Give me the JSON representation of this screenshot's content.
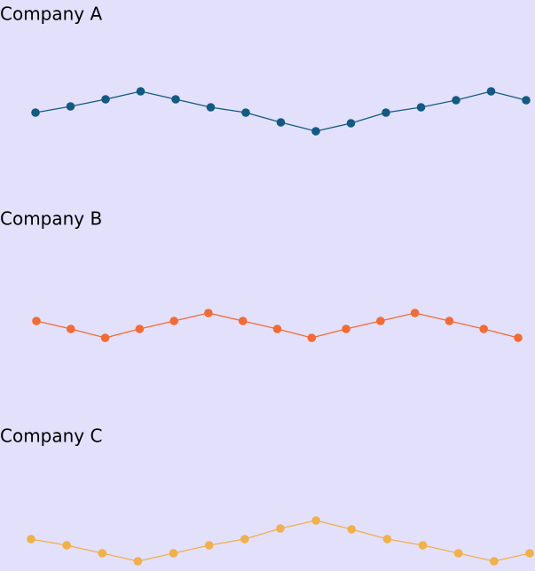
{
  "chart_data": [
    {
      "type": "line",
      "title": "Company A",
      "color": "#135a82",
      "ylim": [
        0,
        50
      ],
      "values": [
        23,
        30,
        38,
        47,
        38,
        29,
        23,
        12,
        2,
        11,
        23,
        29,
        37,
        47,
        37
      ]
    },
    {
      "type": "line",
      "title": "Company B",
      "color": "#f26b35",
      "ylim": [
        0,
        50
      ],
      "values": [
        23,
        14,
        4,
        14,
        23,
        32,
        23,
        14,
        4,
        14,
        23,
        32,
        23,
        14,
        4
      ]
    },
    {
      "type": "line",
      "title": "Company C",
      "color": "#f0b04a",
      "ylim": [
        0,
        50
      ],
      "values": [
        28,
        21,
        12,
        3,
        12,
        21,
        28,
        40,
        49,
        39,
        28,
        21,
        12,
        3,
        12
      ]
    }
  ]
}
